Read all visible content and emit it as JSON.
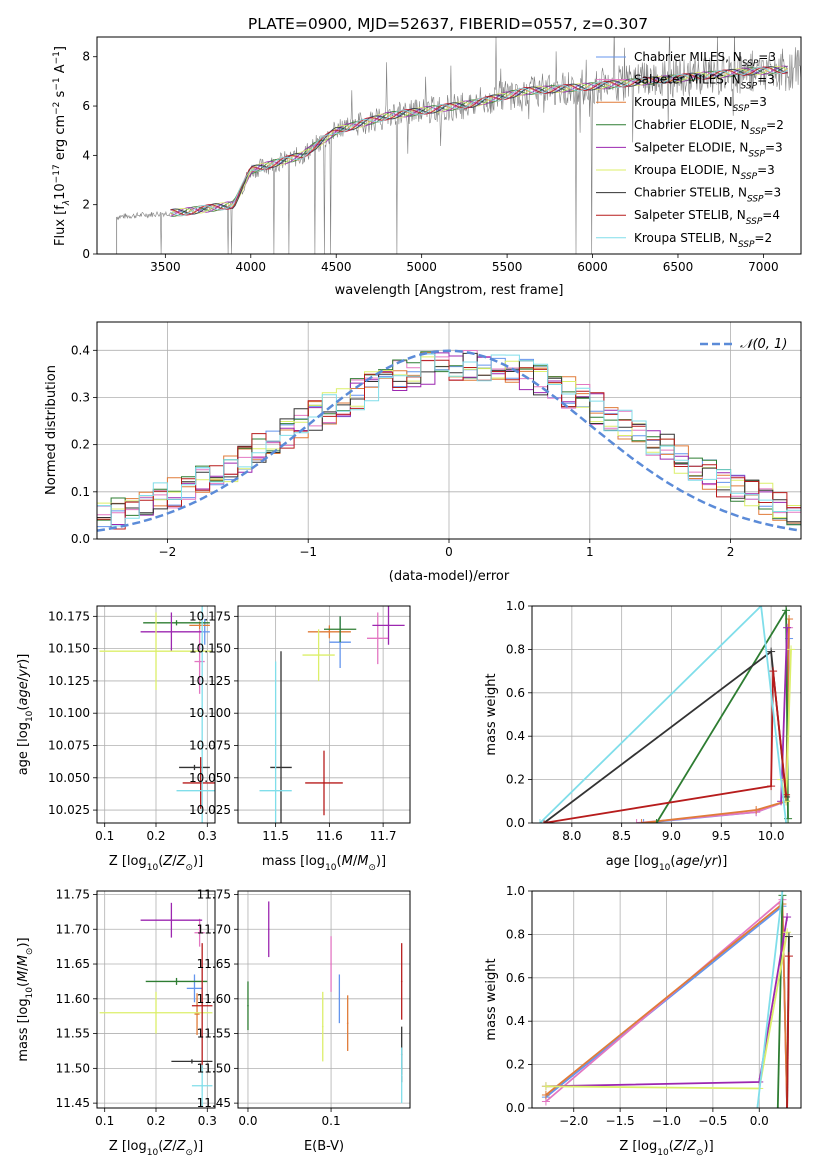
{
  "figure": {
    "title": "PLATE=0900, MJD=52637, FIBERID=0557, z=0.307"
  },
  "colors": {
    "Chabrier MILES": "#6495ed",
    "Salpeter MILES": "#e377c2",
    "Kroupa MILES": "#e07b39",
    "Chabrier ELODIE": "#2e7d32",
    "Salpeter ELODIE": "#9c27b0",
    "Kroupa ELODIE": "#dcef6a",
    "Chabrier STELIB": "#333333",
    "Salpeter STELIB": "#b71c1c",
    "Kroupa STELIB": "#80deea",
    "data": "#808080",
    "normal": "#5b8bd8"
  },
  "chart_data": [
    {
      "id": "spectrum",
      "type": "line",
      "xlabel": "wavelength [Angstrom, rest frame]",
      "ylabel": "Flux [f_λ 10^-17 erg cm^-2 s^-1 A^-1]",
      "xlim": [
        3100,
        7220
      ],
      "ylim": [
        0,
        8.8
      ],
      "xticks": [
        3500,
        4000,
        4500,
        5000,
        5500,
        6000,
        6500,
        7000
      ],
      "yticks": [
        0,
        2,
        4,
        6,
        8
      ],
      "legend_loc": "upper right",
      "legend": [
        {
          "label": "Chabrier MILES",
          "nssp": "3"
        },
        {
          "label": "Salpeter MILES",
          "nssp": "3"
        },
        {
          "label": "Kroupa MILES",
          "nssp": "3"
        },
        {
          "label": "Chabrier ELODIE",
          "nssp": "2"
        },
        {
          "label": "Salpeter ELODIE",
          "nssp": "3"
        },
        {
          "label": "Kroupa ELODIE",
          "nssp": "3"
        },
        {
          "label": "Chabrier STELIB",
          "nssp": "3"
        },
        {
          "label": "Salpeter STELIB",
          "nssp": "4"
        },
        {
          "label": "Kroupa STELIB",
          "nssp": "2"
        }
      ],
      "data_trend": {
        "x": [
          3200,
          3400,
          3600,
          3900,
          4000,
          4300,
          4500,
          4800,
          5000,
          5300,
          5600,
          6000,
          6300,
          6600,
          6900,
          7200
        ],
        "y": [
          1.5,
          1.6,
          1.7,
          2.0,
          3.4,
          4.0,
          5.0,
          5.6,
          5.8,
          6.1,
          6.6,
          6.8,
          7.0,
          7.2,
          7.4,
          7.5
        ]
      }
    },
    {
      "id": "residuals",
      "type": "line",
      "xlabel": "(data-model)/error",
      "ylabel": "Normed distribution",
      "xlim": [
        -2.5,
        2.5
      ],
      "ylim": [
        0,
        0.46
      ],
      "xticks": [
        -2,
        -1,
        0,
        1,
        2
      ],
      "yticks": [
        0.0,
        0.1,
        0.2,
        0.3,
        0.4
      ],
      "legend": "𝒩(0, 1)",
      "normal": {
        "mu": 0,
        "sigma": 1
      }
    },
    {
      "id": "age-vs-Z",
      "type": "scatter",
      "xlabel": "Z [log10(Z/Z⊙)]",
      "ylabel": "age  [log10(age/yr)]",
      "xlim": [
        0.085,
        0.315
      ],
      "ylim": [
        10.015,
        10.183
      ],
      "xticks": [
        0.1,
        0.2,
        0.3
      ],
      "yticks": [
        10.025,
        10.05,
        10.075,
        10.1,
        10.125,
        10.15,
        10.175
      ],
      "points": [
        {
          "s": "Chabrier MILES",
          "x": 0.295,
          "y": 10.163,
          "xe": 0.01,
          "ye": 0.01
        },
        {
          "s": "Salpeter MILES",
          "x": 0.285,
          "y": 10.14,
          "xe": 0.01,
          "ye": 0.025
        },
        {
          "s": "Kroupa MILES",
          "x": 0.285,
          "y": 10.168,
          "xe": 0.02,
          "ye": 0.003
        },
        {
          "s": "Chabrier ELODIE",
          "x": 0.24,
          "y": 10.17,
          "xe": 0.065,
          "ye": 0.002
        },
        {
          "s": "Salpeter ELODIE",
          "x": 0.23,
          "y": 10.163,
          "xe": 0.06,
          "ye": 0.015
        },
        {
          "s": "Kroupa ELODIE",
          "x": 0.2,
          "y": 10.148,
          "xe": 0.11,
          "ye": 0.03
        },
        {
          "s": "Chabrier STELIB",
          "x": 0.275,
          "y": 10.058,
          "xe": 0.03,
          "ye": 0.002
        },
        {
          "s": "Salpeter STELIB",
          "x": 0.287,
          "y": 10.046,
          "xe": 0.035,
          "ye": 0.02
        },
        {
          "s": "Kroupa STELIB",
          "x": 0.29,
          "y": 10.04,
          "xe": 0.05,
          "ye": 0.15
        }
      ]
    },
    {
      "id": "age-vs-mass",
      "type": "scatter",
      "xlabel": "mass [log10(M/M⊙)]",
      "ylabel": "",
      "xlim": [
        11.43,
        11.75
      ],
      "ylim": [
        10.015,
        10.183
      ],
      "xticks": [
        11.5,
        11.6,
        11.7
      ],
      "yticks": [
        10.025,
        10.05,
        10.075,
        10.1,
        10.125,
        10.15,
        10.175
      ],
      "points": [
        {
          "s": "Chabrier MILES",
          "x": 11.62,
          "y": 10.155,
          "xe": 0.02,
          "ye": 0.02
        },
        {
          "s": "Salpeter MILES",
          "x": 11.69,
          "y": 10.158,
          "xe": 0.02,
          "ye": 0.02
        },
        {
          "s": "Kroupa MILES",
          "x": 11.6,
          "y": 10.163,
          "xe": 0.04,
          "ye": 0.005
        },
        {
          "s": "Chabrier ELODIE",
          "x": 11.62,
          "y": 10.165,
          "xe": 0.03,
          "ye": 0.01
        },
        {
          "s": "Salpeter ELODIE",
          "x": 11.71,
          "y": 10.168,
          "xe": 0.03,
          "ye": 0.015
        },
        {
          "s": "Kroupa ELODIE",
          "x": 11.58,
          "y": 10.145,
          "xe": 0.03,
          "ye": 0.02
        },
        {
          "s": "Chabrier STELIB",
          "x": 11.51,
          "y": 10.058,
          "xe": 0.02,
          "ye": 0.09
        },
        {
          "s": "Salpeter STELIB",
          "x": 11.59,
          "y": 10.046,
          "xe": 0.035,
          "ye": 0.025
        },
        {
          "s": "Kroupa STELIB",
          "x": 11.5,
          "y": 10.04,
          "xe": 0.03,
          "ye": 0.1
        }
      ]
    },
    {
      "id": "massweight-vs-age",
      "type": "line",
      "xlabel": "age  [log10(age/yr)]",
      "ylabel": "mass weight",
      "xlim": [
        7.6,
        10.3
      ],
      "ylim": [
        0.0,
        1.0
      ],
      "xticks": [
        8.0,
        8.5,
        9.0,
        9.5,
        10.0
      ],
      "yticks": [
        0.0,
        0.2,
        0.4,
        0.6,
        0.8,
        1.0
      ],
      "series": [
        {
          "s": "Chabrier MILES",
          "x": [
            8.72,
            9.85,
            10.15,
            10.18
          ],
          "y": [
            0.0,
            0.05,
            0.1,
            0.85
          ]
        },
        {
          "s": "Salpeter MILES",
          "x": [
            8.65,
            9.85,
            10.15,
            10.18
          ],
          "y": [
            0.0,
            0.05,
            0.1,
            0.9
          ]
        },
        {
          "s": "Kroupa MILES",
          "x": [
            8.7,
            9.85,
            10.15,
            10.18
          ],
          "y": [
            0.0,
            0.06,
            0.1,
            0.94
          ]
        },
        {
          "s": "Chabrier ELODIE",
          "x": [
            8.85,
            10.15,
            10.17
          ],
          "y": [
            0.0,
            0.98,
            0.02
          ]
        },
        {
          "s": "Salpeter ELODIE",
          "x": [
            10.1,
            10.16
          ],
          "y": [
            0.1,
            0.9
          ]
        },
        {
          "s": "Kroupa ELODIE",
          "x": [
            10.1,
            10.15,
            10.2
          ],
          "y": [
            0.2,
            0.1,
            0.8
          ]
        },
        {
          "s": "Chabrier STELIB",
          "x": [
            7.72,
            10.0,
            10.15
          ],
          "y": [
            0.0,
            0.79,
            0.12
          ]
        },
        {
          "s": "Salpeter STELIB",
          "x": [
            7.72,
            10.0,
            10.02,
            10.15
          ],
          "y": [
            0.0,
            0.17,
            0.7,
            0.13
          ]
        },
        {
          "s": "Kroupa STELIB",
          "x": [
            7.68,
            9.9,
            10.15
          ],
          "y": [
            0.0,
            1.0,
            0.0
          ]
        }
      ]
    },
    {
      "id": "mass-vs-Z",
      "type": "scatter",
      "xlabel": "Z [log10(Z/Z⊙)]",
      "ylabel": "mass [log10(M/M⊙)]",
      "xlim": [
        0.085,
        0.315
      ],
      "ylim": [
        11.443,
        11.755
      ],
      "xticks": [
        0.1,
        0.2,
        0.3
      ],
      "yticks": [
        11.45,
        11.5,
        11.55,
        11.6,
        11.65,
        11.7,
        11.75
      ],
      "points": [
        {
          "s": "Chabrier MILES",
          "x": 0.275,
          "y": 11.615,
          "xe": 0.015,
          "ye": 0.02
        },
        {
          "s": "Salpeter MILES",
          "x": 0.285,
          "y": 11.695,
          "xe": 0.01,
          "ye": 0.02
        },
        {
          "s": "Kroupa MILES",
          "x": 0.28,
          "y": 11.578,
          "xe": 0.005,
          "ye": 0.03
        },
        {
          "s": "Chabrier ELODIE",
          "x": 0.24,
          "y": 11.625,
          "xe": 0.06,
          "ye": 0.005
        },
        {
          "s": "Salpeter ELODIE",
          "x": 0.23,
          "y": 11.713,
          "xe": 0.06,
          "ye": 0.025
        },
        {
          "s": "Kroupa ELODIE",
          "x": 0.2,
          "y": 11.58,
          "xe": 0.11,
          "ye": 0.03
        },
        {
          "s": "Chabrier STELIB",
          "x": 0.27,
          "y": 11.51,
          "xe": 0.04,
          "ye": 0.003
        },
        {
          "s": "Salpeter STELIB",
          "x": 0.29,
          "y": 11.59,
          "xe": 0.02,
          "ye": 0.09
        },
        {
          "s": "Kroupa STELIB",
          "x": 0.29,
          "y": 11.475,
          "xe": 0.02,
          "ye": 0.03
        }
      ]
    },
    {
      "id": "mass-vs-EBV",
      "type": "scatter",
      "xlabel": "E(B-V)",
      "ylabel": "",
      "xlim": [
        -0.012,
        0.195
      ],
      "ylim": [
        11.443,
        11.755
      ],
      "xticks": [
        0.0,
        0.1
      ],
      "yticks": [
        11.45,
        11.5,
        11.55,
        11.6,
        11.65,
        11.7,
        11.75
      ],
      "points": [
        {
          "s": "Chabrier MILES",
          "x": 0.11,
          "y": 11.6,
          "xe": 0.0,
          "ye": 0.035
        },
        {
          "s": "Salpeter MILES",
          "x": 0.1,
          "y": 11.65,
          "xe": 0.0,
          "ye": 0.04
        },
        {
          "s": "Kroupa MILES",
          "x": 0.12,
          "y": 11.565,
          "xe": 0.0,
          "ye": 0.04
        },
        {
          "s": "Chabrier ELODIE",
          "x": 0.0,
          "y": 11.59,
          "xe": 0.0,
          "ye": 0.035
        },
        {
          "s": "Salpeter ELODIE",
          "x": 0.025,
          "y": 11.7,
          "xe": 0.0,
          "ye": 0.04
        },
        {
          "s": "Kroupa ELODIE",
          "x": 0.09,
          "y": 11.56,
          "xe": 0.0,
          "ye": 0.05
        },
        {
          "s": "Chabrier STELIB",
          "x": 0.185,
          "y": 11.52,
          "xe": 0.0,
          "ye": 0.04
        },
        {
          "s": "Salpeter STELIB",
          "x": 0.185,
          "y": 11.625,
          "xe": 0.0,
          "ye": 0.055
        },
        {
          "s": "Kroupa STELIB",
          "x": 0.185,
          "y": 11.49,
          "xe": 0.0,
          "ye": 0.04
        }
      ]
    },
    {
      "id": "massweight-vs-Z",
      "type": "line",
      "xlabel": "Z [log10(Z/Z⊙)]",
      "ylabel": "mass weight",
      "xlim": [
        -2.45,
        0.45
      ],
      "ylim": [
        0.0,
        1.0
      ],
      "xticks": [
        -2.0,
        -1.5,
        -1.0,
        -0.5,
        0.0
      ],
      "yticks": [
        0.0,
        0.2,
        0.4,
        0.6,
        0.8,
        1.0
      ],
      "series": [
        {
          "s": "Chabrier MILES",
          "x": [
            -2.3,
            0.25,
            0.3
          ],
          "y": [
            0.05,
            0.93,
            0.0
          ]
        },
        {
          "s": "Salpeter MILES",
          "x": [
            -2.3,
            0.25,
            0.3
          ],
          "y": [
            0.03,
            0.96,
            0.0
          ]
        },
        {
          "s": "Kroupa MILES",
          "x": [
            -2.3,
            0.25,
            0.3
          ],
          "y": [
            0.06,
            0.94,
            0.0
          ]
        },
        {
          "s": "Chabrier ELODIE",
          "x": [
            0.2,
            0.25
          ],
          "y": [
            0.0,
            0.98
          ]
        },
        {
          "s": "Salpeter ELODIE",
          "x": [
            -2.3,
            0.0,
            0.3
          ],
          "y": [
            0.1,
            0.12,
            0.88
          ]
        },
        {
          "s": "Kroupa ELODIE",
          "x": [
            -2.3,
            0.0,
            0.3
          ],
          "y": [
            0.1,
            0.09,
            0.81
          ]
        },
        {
          "s": "Chabrier STELIB",
          "x": [
            0.3,
            0.32
          ],
          "y": [
            0.0,
            0.79
          ]
        },
        {
          "s": "Salpeter STELIB",
          "x": [
            0.3,
            0.32
          ],
          "y": [
            0.0,
            0.7
          ]
        },
        {
          "s": "Kroupa STELIB",
          "x": [
            -0.02,
            0.25
          ],
          "y": [
            0.0,
            1.0
          ]
        }
      ]
    }
  ]
}
